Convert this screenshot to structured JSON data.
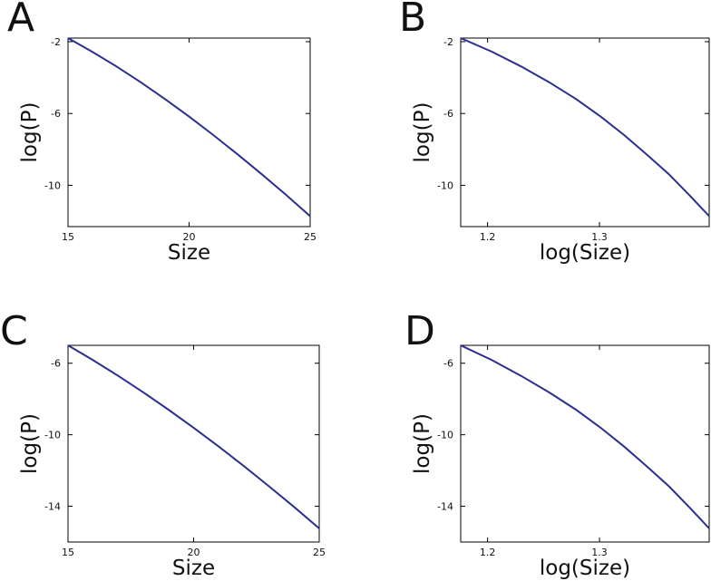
{
  "chart_data": [
    {
      "panel": "A",
      "type": "line",
      "xlabel": "Size",
      "ylabel": "log(P)",
      "xlim": [
        15,
        25
      ],
      "ylim": [
        -12.3,
        -1.8
      ],
      "xticks": [
        15,
        20,
        25
      ],
      "xtick_labels": [
        "15",
        "20",
        "25"
      ],
      "yticks": [
        -2,
        -6,
        -10
      ],
      "ytick_labels": [
        "-2",
        "-6",
        "-10"
      ],
      "series": [
        {
          "x": [
            15,
            16,
            17,
            18,
            19,
            20,
            21,
            22,
            23,
            24,
            25
          ],
          "y": [
            -1.8,
            -2.56,
            -3.38,
            -4.26,
            -5.19,
            -6.17,
            -7.2,
            -8.27,
            -9.38,
            -10.53,
            -11.72
          ]
        }
      ]
    },
    {
      "panel": "B",
      "type": "line",
      "xlabel": "log(Size)",
      "ylabel": "log(P)",
      "xlim": [
        1.176,
        1.398
      ],
      "ylim": [
        -12.3,
        -1.8
      ],
      "xticks": [
        1.2,
        1.3
      ],
      "xtick_labels": [
        "1.2",
        "1.3"
      ],
      "yticks": [
        -2,
        -6,
        -10
      ],
      "ytick_labels": [
        "-2",
        "-6",
        "-10"
      ],
      "series": [
        {
          "x": [
            1.176,
            1.204,
            1.23,
            1.255,
            1.279,
            1.301,
            1.322,
            1.342,
            1.362,
            1.38,
            1.398
          ],
          "y": [
            -1.8,
            -2.56,
            -3.38,
            -4.26,
            -5.19,
            -6.17,
            -7.2,
            -8.27,
            -9.38,
            -10.53,
            -11.72
          ]
        }
      ]
    },
    {
      "panel": "C",
      "type": "line",
      "xlabel": "Size",
      "ylabel": "log(P)",
      "xlim": [
        15,
        25
      ],
      "ylim": [
        -16.0,
        -5.0
      ],
      "xticks": [
        15,
        20,
        25
      ],
      "xtick_labels": [
        "15",
        "20",
        "25"
      ],
      "yticks": [
        -6,
        -10,
        -14
      ],
      "ytick_labels": [
        "-6",
        "-10",
        "-14"
      ],
      "series": [
        {
          "x": [
            15,
            16,
            17,
            18,
            19,
            20,
            21,
            22,
            23,
            24,
            25
          ],
          "y": [
            -5.0,
            -5.83,
            -6.71,
            -7.63,
            -8.6,
            -9.61,
            -10.66,
            -11.75,
            -12.88,
            -14.04,
            -15.24
          ]
        }
      ]
    },
    {
      "panel": "D",
      "type": "line",
      "xlabel": "log(Size)",
      "ylabel": "log(P)",
      "xlim": [
        1.176,
        1.398
      ],
      "ylim": [
        -16.0,
        -5.0
      ],
      "xticks": [
        1.2,
        1.3
      ],
      "xtick_labels": [
        "1.2",
        "1.3"
      ],
      "yticks": [
        -6,
        -10,
        -14
      ],
      "ytick_labels": [
        "-6",
        "-10",
        "-14"
      ],
      "series": [
        {
          "x": [
            1.176,
            1.204,
            1.23,
            1.255,
            1.279,
            1.301,
            1.322,
            1.342,
            1.362,
            1.38,
            1.398
          ],
          "y": [
            -5.0,
            -5.83,
            -6.71,
            -7.63,
            -8.6,
            -9.61,
            -10.66,
            -11.75,
            -12.88,
            -14.04,
            -15.24
          ]
        }
      ]
    }
  ],
  "style": {
    "line_color": "#2b2f8f",
    "grid": false,
    "legend": "none"
  }
}
